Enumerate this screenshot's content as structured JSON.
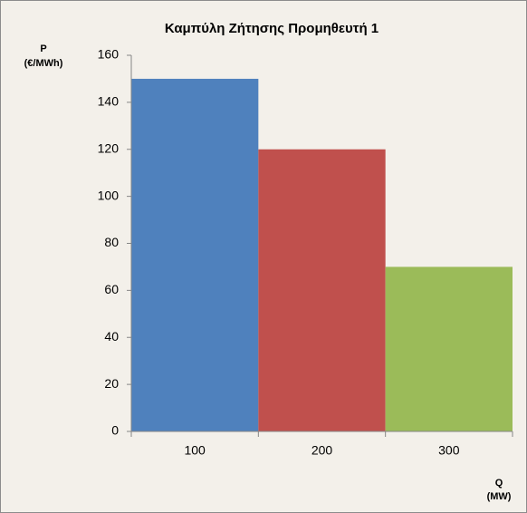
{
  "chart_data": {
    "type": "bar",
    "title": "Καμπύλη Ζήτησης Προμηθευτή 1",
    "y_label": [
      "P",
      "(€/MWh)"
    ],
    "x_label": [
      "Q",
      "(MW)"
    ],
    "categories": [
      "100",
      "200",
      "300"
    ],
    "values": [
      150,
      120,
      70
    ],
    "colors": [
      "#4f81bd",
      "#c0504d",
      "#9bbb59"
    ],
    "ylim": [
      0,
      160
    ],
    "yticks": [
      0,
      20,
      40,
      60,
      80,
      100,
      120,
      140,
      160
    ],
    "grid": false
  }
}
